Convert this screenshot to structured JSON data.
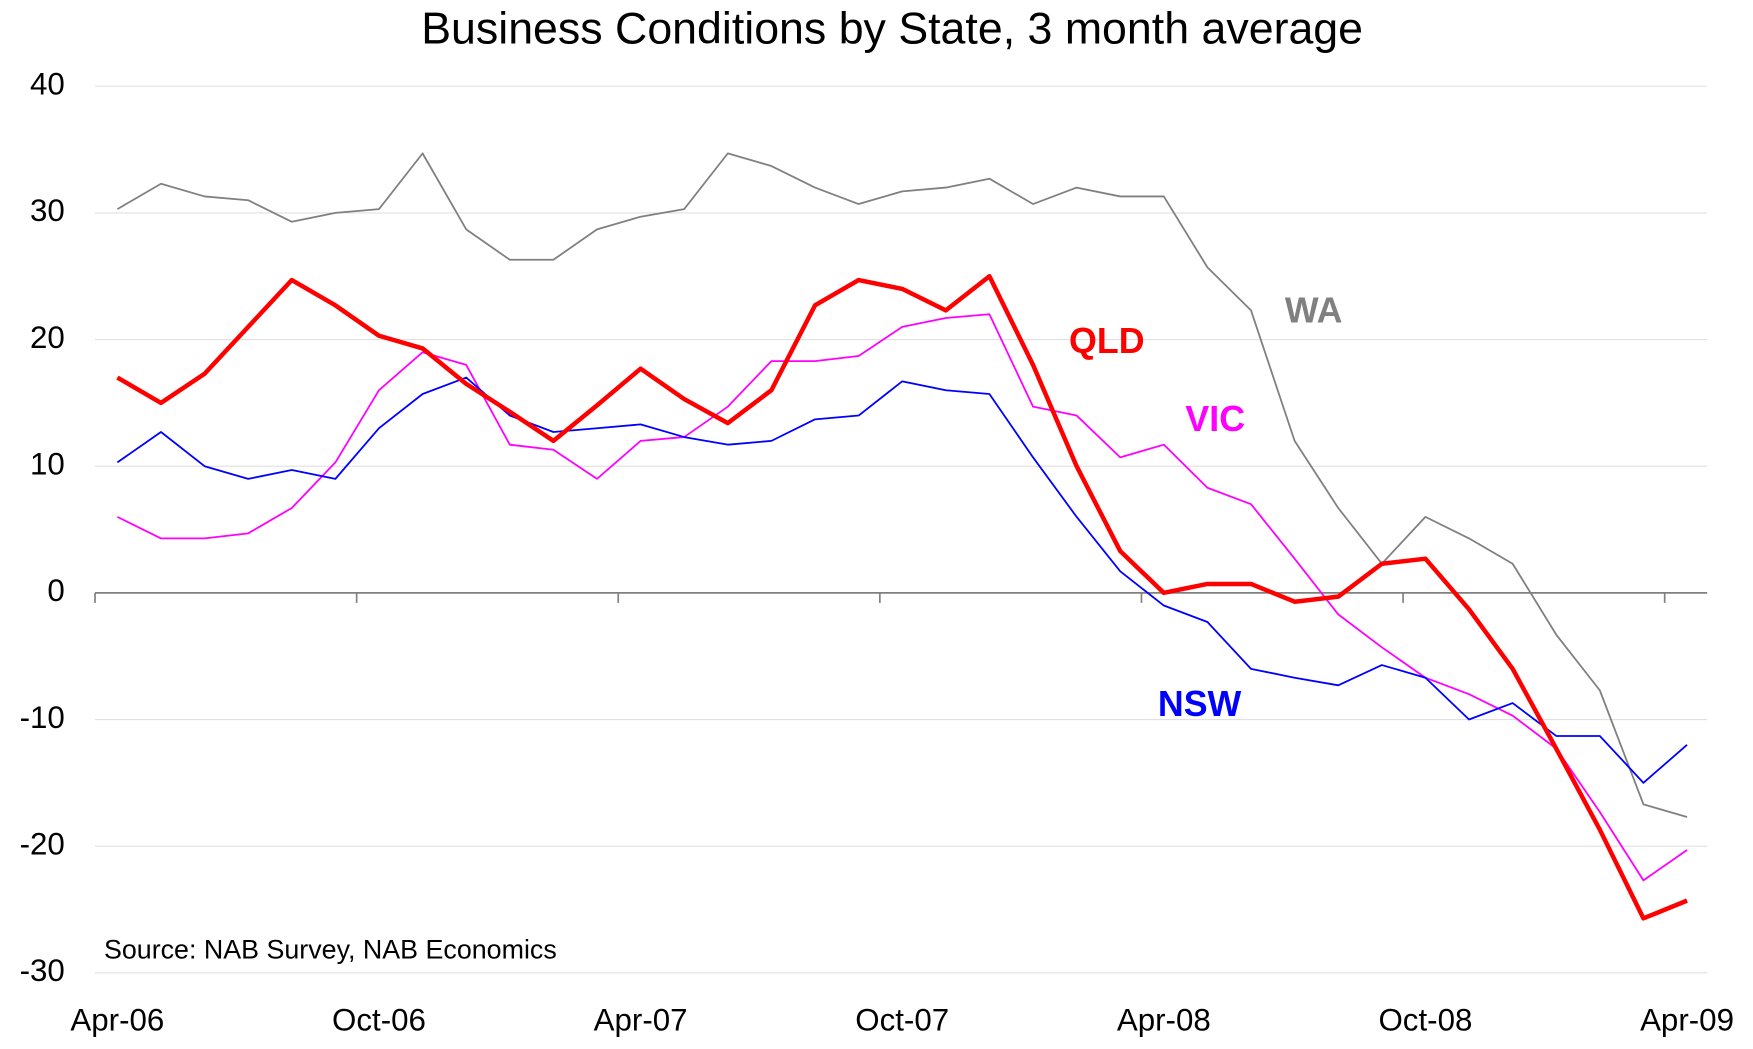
{
  "chart_data": {
    "type": "line",
    "title": "Business Conditions by State, 3 month average",
    "annotation": "Source: NAB Survey, NAB Economics",
    "categories": [
      "Apr-06",
      null,
      null,
      null,
      null,
      null,
      "Oct-06",
      null,
      null,
      null,
      null,
      null,
      "Apr-07",
      null,
      null,
      null,
      null,
      null,
      "Oct-07",
      null,
      null,
      null,
      null,
      null,
      "Apr-08",
      null,
      null,
      null,
      null,
      null,
      "Oct-08",
      null,
      null,
      null,
      null,
      null,
      "Apr-09"
    ],
    "ylim": [
      -30,
      40
    ],
    "yticks": [
      -30,
      -20,
      -10,
      0,
      10,
      20,
      30,
      40
    ],
    "grid": true,
    "series": [
      {
        "name": "WA",
        "color": "#808080",
        "values": [
          30.3,
          32.3,
          31.3,
          31,
          29.3,
          30,
          30.3,
          34.7,
          28.7,
          26.3,
          26.3,
          28.7,
          29.7,
          30.3,
          34.7,
          33.7,
          32,
          30.7,
          31.7,
          32,
          32.7,
          30.7,
          32,
          31.3,
          31.3,
          25.7,
          22.3,
          12,
          6.7,
          2.3,
          6,
          4.3,
          2.3,
          -3.3,
          -7.7,
          -16.7,
          -17.7
        ]
      },
      {
        "name": "VIC",
        "color": "#ff00ff",
        "values": [
          6,
          4.3,
          4.3,
          4.7,
          6.7,
          10.3,
          16,
          19,
          18,
          11.7,
          11.3,
          9,
          12,
          12.3,
          14.7,
          18.3,
          18.3,
          18.7,
          21,
          21.7,
          22,
          14.7,
          14,
          10.7,
          11.7,
          8.3,
          7,
          2.7,
          -1.7,
          -4.3,
          -6.7,
          -8,
          -9.7,
          -12.3,
          -17.3,
          -22.7,
          -20.3
        ]
      },
      {
        "name": "NSW",
        "color": "#0000ff",
        "values": [
          10.3,
          12.7,
          10,
          9,
          9.7,
          9,
          13,
          15.7,
          17,
          14,
          12.7,
          13,
          13.3,
          12.3,
          11.7,
          12,
          13.7,
          14,
          16.7,
          16,
          15.7,
          10.7,
          6,
          1.7,
          -1,
          -2.3,
          -6,
          -6.7,
          -7.3,
          -5.7,
          -6.7,
          -10,
          -8.7,
          -11.3,
          -11.3,
          -15,
          -12
        ]
      },
      {
        "name": "QLD",
        "color": "#ff0000",
        "values": [
          17,
          15,
          17.3,
          21,
          24.7,
          22.7,
          20.3,
          19.3,
          16.5,
          14.3,
          12,
          14.8,
          17.7,
          15.3,
          13.4,
          16,
          22.7,
          24.7,
          24,
          22.3,
          25,
          18,
          10,
          3.3,
          0,
          0.7,
          0.7,
          -0.7,
          -0.3,
          2.3,
          2.7,
          -1.3,
          -6,
          -12.3,
          -18.7,
          -25.7,
          -24.3
        ]
      }
    ]
  }
}
